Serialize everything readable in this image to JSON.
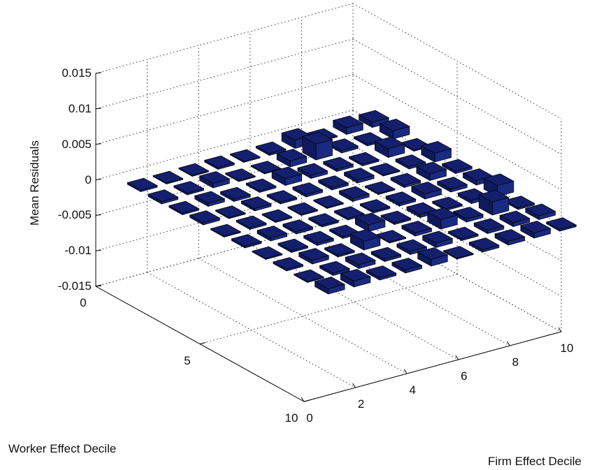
{
  "chart_data": {
    "type": "bar3",
    "title": "",
    "xlabel": "Worker Effect Decile",
    "ylabel": "Firm Effect Decile",
    "zlabel": "Mean Residuals",
    "zlim": [
      -0.015,
      0.015
    ],
    "z_ticks": [
      0.015,
      0.01,
      0.005,
      0,
      -0.005,
      -0.01,
      -0.015
    ],
    "z_tick_labels": [
      "0.015",
      "0.01",
      "0.005",
      "0",
      "-0.005",
      "-0.01",
      "-0.015"
    ],
    "x_ticks": [
      0,
      5,
      10
    ],
    "x_tick_labels": [
      "0",
      "5",
      "10"
    ],
    "y_ticks": [
      0,
      2,
      4,
      6,
      8,
      10
    ],
    "y_tick_labels": [
      "0",
      "2",
      "4",
      "6",
      "8",
      "10"
    ],
    "worker_deciles": [
      1,
      2,
      3,
      4,
      5,
      6,
      7,
      8,
      9,
      10
    ],
    "firm_deciles": [
      1,
      2,
      3,
      4,
      5,
      6,
      7,
      8,
      9,
      10
    ],
    "values": [
      [
        -0.0002,
        -0.0001,
        0.0001,
        0.0002,
        0.0001,
        0.0002,
        0.0011,
        0.0001,
        0.0009,
        0.0007
      ],
      [
        -0.0003,
        0.0002,
        0.0006,
        -0.0001,
        0.0001,
        0.0008,
        0.0022,
        0.0003,
        0.0002,
        0.0011
      ],
      [
        -0.0002,
        0.0004,
        -0.0003,
        0.0002,
        0.0009,
        0.0004,
        0.0003,
        -0.0002,
        0.0012,
        -0.0001
      ],
      [
        0.0003,
        -0.0001,
        0.0003,
        0.0002,
        0.0003,
        0.0003,
        0.0004,
        0.0001,
        0.0003,
        0.0012
      ],
      [
        -0.0001,
        0.0002,
        0.0001,
        0.0001,
        0.0001,
        0.0004,
        0.0001,
        0.0003,
        0.0009,
        0.0003
      ],
      [
        0.0002,
        0.0004,
        0.0003,
        0.0002,
        0.0002,
        0.0002,
        0.0003,
        0.0007,
        0.0004,
        0.0006
      ],
      [
        0.0001,
        0.0002,
        0.0003,
        0.0002,
        0.0009,
        0.0002,
        0.0004,
        0.0002,
        0.0004,
        0.0015
      ],
      [
        0.0002,
        0.0005,
        0.0002,
        0.0012,
        0.0001,
        0.0004,
        0.0013,
        0.0004,
        0.0018,
        -0.0002
      ],
      [
        0.0001,
        0.0003,
        0.0005,
        0.0003,
        0.0004,
        0.0006,
        0.0002,
        0.0004,
        0.0005,
        0.0005
      ],
      [
        0.0007,
        0.0008,
        0.0003,
        0.0004,
        0.0009,
        0.0001,
        0.0003,
        0.0005,
        0.0007,
        0.0002
      ]
    ],
    "grid": true,
    "bar_color": "#14206e"
  }
}
